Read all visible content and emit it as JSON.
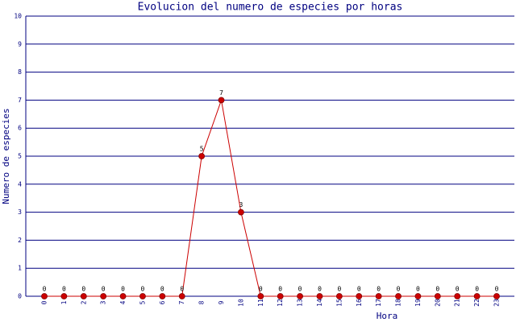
{
  "chart_data": {
    "type": "line",
    "title": "Evolucion del numero de especies por horas",
    "x_label": "Hora",
    "y_label": "Numero de especies",
    "categories": [
      "0",
      "1",
      "2",
      "3",
      "4",
      "5",
      "6",
      "7",
      "8",
      "9",
      "10",
      "11",
      "12",
      "13",
      "14",
      "15",
      "16",
      "17",
      "18",
      "19",
      "20",
      "21",
      "22",
      "23"
    ],
    "values": [
      0,
      0,
      0,
      0,
      0,
      0,
      0,
      0,
      5,
      7,
      3,
      0,
      0,
      0,
      0,
      0,
      0,
      0,
      0,
      0,
      0,
      0,
      0,
      0
    ],
    "color": "#cc0000",
    "ylim": [
      0,
      10
    ],
    "yticks": [
      0,
      1,
      2,
      3,
      4,
      5,
      6,
      7,
      8,
      9,
      10
    ],
    "grid": true
  }
}
